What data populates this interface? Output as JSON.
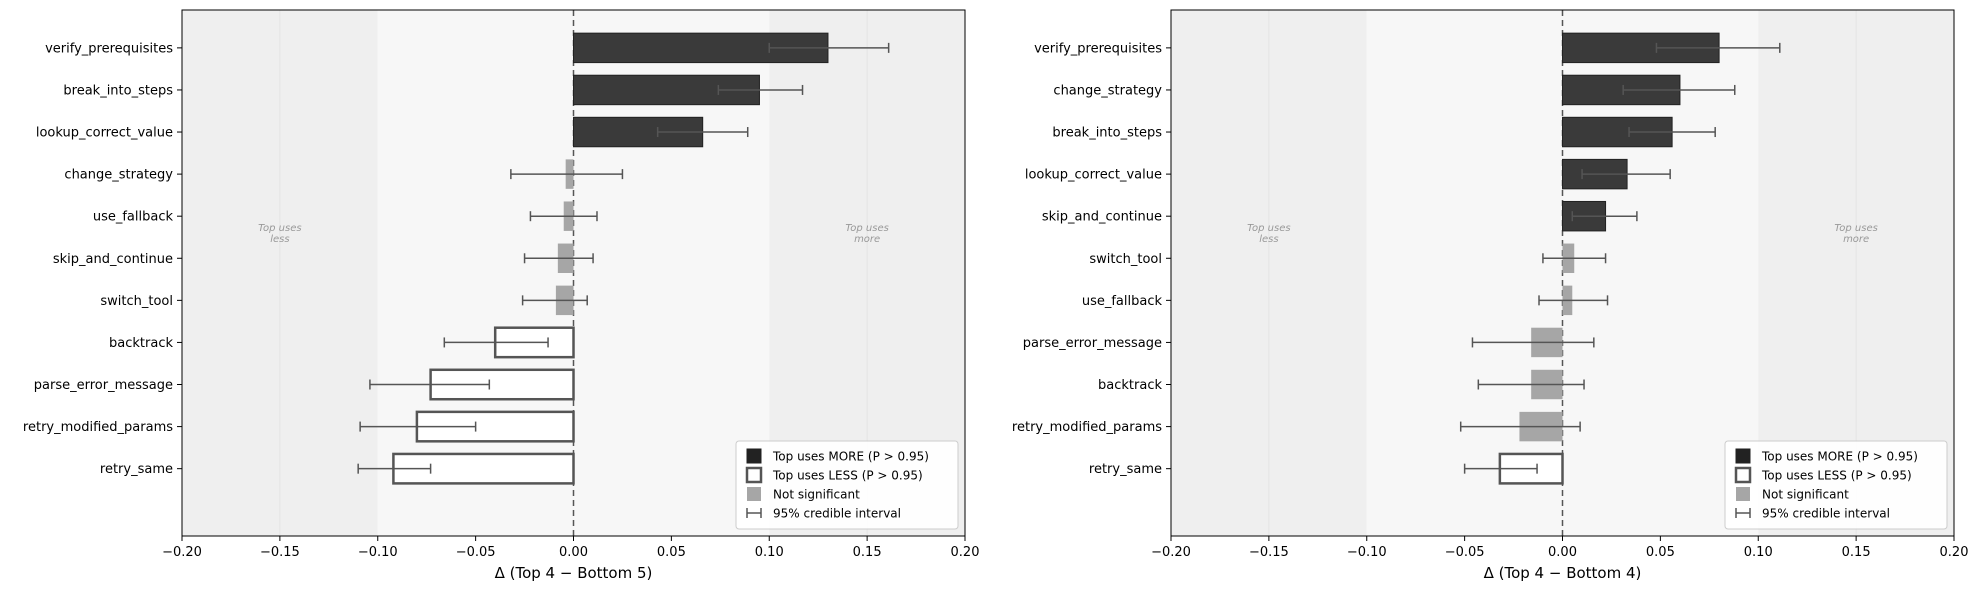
{
  "legend": {
    "more": "Top uses MORE (P > 0.95)",
    "less": "Top uses LESS (P > 0.95)",
    "ns": "Not significant",
    "ci": "95% credible interval"
  },
  "colors": {
    "more": "#3a3a3a",
    "less_edge": "#555555",
    "ns": "#a6a6a6",
    "errorbar": "#555555",
    "zero_line": "#555555",
    "band_outer": "#efefef",
    "band_inner": "#f7f7f7"
  },
  "chart_data": [
    {
      "type": "bar",
      "orientation": "horizontal",
      "xlabel": "Δ (Top 4 − Bottom 5)",
      "ylabel": "",
      "xlim": [
        -0.2,
        0.2
      ],
      "xticks": [
        "−0.20",
        "−0.15",
        "−0.10",
        "−0.05",
        "0.00",
        "0.05",
        "0.10",
        "0.15",
        "0.20"
      ],
      "tick_values": [
        -0.2,
        -0.15,
        -0.1,
        -0.05,
        0,
        0.05,
        0.1,
        0.15,
        0.2
      ],
      "grid": false,
      "legend_position": "lower-right",
      "annotations": {
        "left": [
          "Top uses",
          "less"
        ],
        "right": [
          "Top uses",
          "more"
        ]
      },
      "categories": [
        "verify_prerequisites",
        "break_into_steps",
        "lookup_correct_value",
        "change_strategy",
        "use_fallback",
        "skip_and_continue",
        "switch_tool",
        "backtrack",
        "parse_error_message",
        "retry_modified_params",
        "retry_same"
      ],
      "values": [
        0.13,
        0.095,
        0.066,
        -0.004,
        -0.005,
        -0.008,
        -0.009,
        -0.04,
        -0.073,
        -0.08,
        -0.092
      ],
      "ci_low": [
        0.1,
        0.074,
        0.043,
        -0.032,
        -0.022,
        -0.025,
        -0.026,
        -0.066,
        -0.104,
        -0.109,
        -0.11
      ],
      "ci_high": [
        0.161,
        0.117,
        0.089,
        0.025,
        0.012,
        0.01,
        0.007,
        -0.013,
        -0.043,
        -0.05,
        -0.073
      ],
      "significance": [
        "more",
        "more",
        "more",
        "ns",
        "ns",
        "ns",
        "ns",
        "less",
        "less",
        "less",
        "less"
      ]
    },
    {
      "type": "bar",
      "orientation": "horizontal",
      "xlabel": "Δ (Top 4 − Bottom 4)",
      "ylabel": "",
      "xlim": [
        -0.2,
        0.2
      ],
      "xticks": [
        "−0.20",
        "−0.15",
        "−0.10",
        "−0.05",
        "0.00",
        "0.05",
        "0.10",
        "0.15",
        "0.20"
      ],
      "tick_values": [
        -0.2,
        -0.15,
        -0.1,
        -0.05,
        0,
        0.05,
        0.1,
        0.15,
        0.2
      ],
      "grid": false,
      "legend_position": "lower-right",
      "annotations": {
        "left": [
          "Top uses",
          "less"
        ],
        "right": [
          "Top uses",
          "more"
        ]
      },
      "categories": [
        "verify_prerequisites",
        "change_strategy",
        "break_into_steps",
        "lookup_correct_value",
        "skip_and_continue",
        "switch_tool",
        "use_fallback",
        "parse_error_message",
        "backtrack",
        "retry_modified_params",
        "retry_same"
      ],
      "values": [
        0.08,
        0.06,
        0.056,
        0.033,
        0.022,
        0.006,
        0.005,
        -0.016,
        -0.016,
        -0.022,
        -0.032
      ],
      "ci_low": [
        0.048,
        0.031,
        0.034,
        0.01,
        0.005,
        -0.01,
        -0.012,
        -0.046,
        -0.043,
        -0.052,
        -0.05
      ],
      "ci_high": [
        0.111,
        0.088,
        0.078,
        0.055,
        0.038,
        0.022,
        0.023,
        0.016,
        0.011,
        0.009,
        -0.013
      ],
      "significance": [
        "more",
        "more",
        "more",
        "more",
        "more",
        "ns",
        "ns",
        "ns",
        "ns",
        "ns",
        "less"
      ]
    }
  ]
}
